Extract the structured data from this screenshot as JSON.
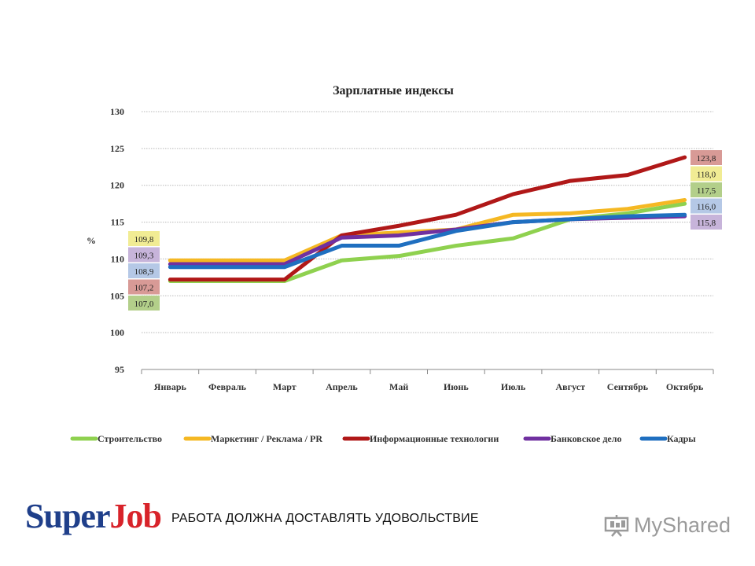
{
  "chart_data": {
    "type": "line",
    "title": "Зарплатные индексы",
    "ylabel": "%",
    "xlabel": "",
    "ylim": [
      95,
      130
    ],
    "yticks": [
      95,
      100,
      105,
      110,
      115,
      120,
      125,
      130
    ],
    "grid": true,
    "legend_position": "bottom",
    "categories": [
      "Январь",
      "Февраль",
      "Март",
      "Апрель",
      "Май",
      "Июнь",
      "Июль",
      "Август",
      "Сентябрь",
      "Октябрь"
    ],
    "series": [
      {
        "name": "Строительство",
        "color": "#8fd14f",
        "values": [
          107.0,
          107.0,
          107.0,
          109.8,
          110.4,
          111.8,
          112.8,
          115.4,
          116.2,
          117.5
        ],
        "start_label": "107,0",
        "end_label": "117,5",
        "label_bg": "#b3cf8a"
      },
      {
        "name": "Маркетинг / Реклама / PR",
        "color": "#f5b823",
        "values": [
          109.8,
          109.8,
          109.8,
          113.2,
          113.6,
          114.0,
          116.0,
          116.2,
          116.8,
          118.0
        ],
        "start_label": "109,8",
        "end_label": "118,0",
        "label_bg": "#f1ec94"
      },
      {
        "name": "Информационные технологии",
        "color": "#b01818",
        "values": [
          107.2,
          107.2,
          107.2,
          113.2,
          114.5,
          116.0,
          118.8,
          120.6,
          121.4,
          123.8
        ],
        "start_label": "107,2",
        "end_label": "123,8",
        "label_bg": "#d89a96"
      },
      {
        "name": "Банковское дело",
        "color": "#7030a0",
        "values": [
          109.3,
          109.3,
          109.3,
          112.9,
          113.2,
          114.0,
          115.0,
          115.4,
          115.6,
          115.8
        ],
        "start_label": "109,3",
        "end_label": "115,8",
        "label_bg": "#c7b4da"
      },
      {
        "name": "Кадры",
        "color": "#1f6fc0",
        "values": [
          108.9,
          108.9,
          108.9,
          111.8,
          111.8,
          113.8,
          115.0,
          115.4,
          115.8,
          116.0
        ],
        "start_label": "108,9",
        "end_label": "116,0",
        "label_bg": "#b5c8e6"
      }
    ]
  },
  "footer": {
    "brand_super": "Super",
    "brand_job": "Job",
    "slogan": "РАБОТА ДОЛЖНА ДОСТАВЛЯТЬ УДОВОЛЬСТВИЕ",
    "mys_label": "MyShared",
    "mys_icon": "presentation-screen-icon"
  }
}
